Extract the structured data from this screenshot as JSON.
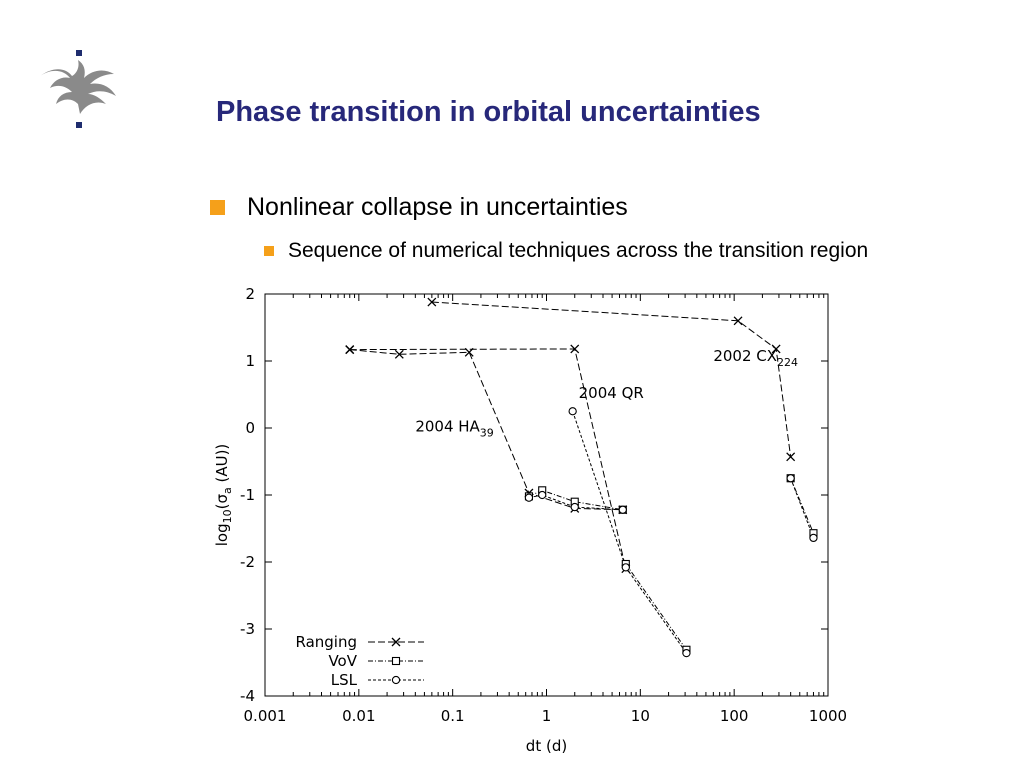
{
  "slide": {
    "title": "Phase transition in orbital uncertainties",
    "bullets": [
      {
        "text": "Nonlinear collapse in uncertainties"
      },
      {
        "text": "Sequence of numerical techniques across the transition region"
      }
    ],
    "logo_icon": "university-flame-logo-icon"
  },
  "colors": {
    "title": "#27287a",
    "bullet": "#f5a01a",
    "plot_line": "#000000"
  },
  "chart_data": {
    "type": "line",
    "xlabel": "dt (d)",
    "ylabel": "log10(σa (AU))",
    "x_scale": "log",
    "xlim": [
      0.001,
      1000
    ],
    "ylim": [
      -4,
      2
    ],
    "x_ticks": [
      "0.001",
      "0.01",
      "0.1",
      "1",
      "10",
      "100",
      "1000"
    ],
    "y_ticks": [
      "2",
      "1",
      "0",
      "-1",
      "-2",
      "-3",
      "-4"
    ],
    "grid": false,
    "legend_position": "bottom-left",
    "legend": [
      {
        "name": "Ranging",
        "marker": "x"
      },
      {
        "name": "VoV",
        "marker": "square"
      },
      {
        "name": "LSL",
        "marker": "circle"
      }
    ],
    "annotations": [
      {
        "text": "2002 CX",
        "sub": "224",
        "x": 60,
        "y": 1.0
      },
      {
        "text": "2004 QR",
        "sub": "",
        "x": 2.2,
        "y": 0.45
      },
      {
        "text": "2004 HA",
        "sub": "39",
        "x": 0.04,
        "y": -0.05
      }
    ],
    "series": [
      {
        "object": "2002 CX224",
        "method": "Ranging",
        "marker": "x",
        "points": [
          [
            0.06,
            1.88
          ],
          [
            110,
            1.6
          ],
          [
            280,
            1.18
          ],
          [
            400,
            -0.43
          ]
        ]
      },
      {
        "object": "2002 CX224",
        "method": "VoV",
        "marker": "square",
        "points": [
          [
            400,
            -0.75
          ],
          [
            700,
            -1.57
          ]
        ]
      },
      {
        "object": "2002 CX224",
        "method": "LSL",
        "marker": "circle",
        "points": [
          [
            400,
            -0.75
          ],
          [
            700,
            -1.64
          ]
        ]
      },
      {
        "object": "2004 QR",
        "method": "Ranging",
        "marker": "x",
        "points": [
          [
            0.008,
            1.17
          ],
          [
            2.0,
            1.18
          ],
          [
            7.0,
            -2.1
          ]
        ]
      },
      {
        "object": "2004 QR",
        "method": "VoV",
        "marker": "square",
        "points": [
          [
            7.0,
            -2.03
          ],
          [
            31,
            -3.31
          ]
        ]
      },
      {
        "object": "2004 QR",
        "method": "LSL",
        "marker": "circle",
        "points": [
          [
            1.9,
            0.25
          ],
          [
            7.0,
            -2.08
          ],
          [
            31,
            -3.36
          ]
        ]
      },
      {
        "object": "2004 HA39",
        "method": "Ranging",
        "marker": "x",
        "points": [
          [
            0.008,
            1.17
          ],
          [
            0.027,
            1.1
          ],
          [
            0.15,
            1.13
          ],
          [
            0.65,
            -0.97
          ],
          [
            2.0,
            -1.2
          ],
          [
            6.5,
            -1.22
          ]
        ]
      },
      {
        "object": "2004 HA39",
        "method": "VoV",
        "marker": "square",
        "points": [
          [
            0.65,
            -1.02
          ],
          [
            0.9,
            -0.93
          ],
          [
            2.0,
            -1.1
          ],
          [
            6.5,
            -1.22
          ]
        ]
      },
      {
        "object": "2004 HA39",
        "method": "LSL",
        "marker": "circle",
        "points": [
          [
            0.65,
            -1.04
          ],
          [
            0.9,
            -1.0
          ],
          [
            2.0,
            -1.18
          ],
          [
            6.5,
            -1.22
          ]
        ]
      }
    ]
  }
}
